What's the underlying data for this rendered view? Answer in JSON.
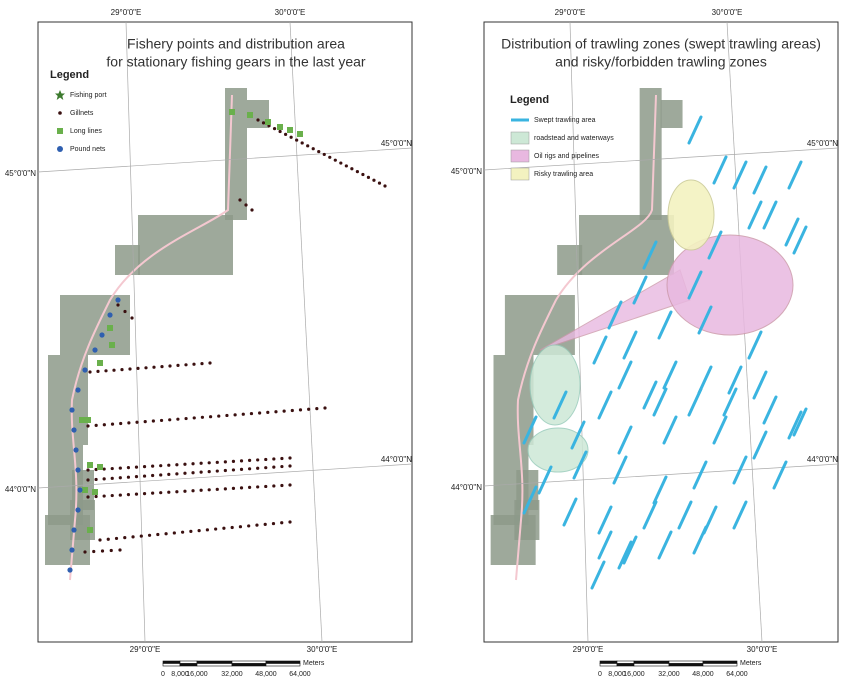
{
  "maps": [
    {
      "title": [
        "Fishery points and distribution area",
        "for stationary fishing gears in the last year"
      ],
      "legend": {
        "title": "Legend",
        "items": [
          "Fishing port",
          "Gillnets",
          "Long lines",
          "Pound nets"
        ]
      },
      "graticule": {
        "top": [
          "29°0'0\"E",
          "30°0'0\"E"
        ],
        "bottom": [
          "29°0'0\"E",
          "30°0'0\"E"
        ],
        "left": [
          "45°0'0\"N",
          "44°0'0\"N"
        ],
        "right": [
          "45°0'0\"N",
          "44°0'0\"N"
        ]
      },
      "scale": {
        "labels": [
          "0",
          "8,000",
          "16,000",
          "32,000",
          "48,000",
          "64,000"
        ],
        "unit": "Meters"
      }
    },
    {
      "title": [
        "Distribution of trawling zones (swept trawling areas)",
        "and risky/forbidden trawling zones"
      ],
      "legend": {
        "title": "Legend",
        "items": [
          "Swept trawling area",
          "roadstead and waterways",
          "Oil rigs and pipelines",
          "Risky trawling area"
        ]
      },
      "graticule": {
        "top": [
          "29°0'0\"E",
          "30°0'0\"E"
        ],
        "bottom": [
          "29°0'0\"E",
          "30°0'0\"E"
        ],
        "left": [
          "45°0'0\"N",
          "44°0'0\"N"
        ],
        "right": [
          "45°0'0\"N",
          "44°0'0\"N"
        ]
      },
      "scale": {
        "labels": [
          "0",
          "8,000",
          "16,000",
          "32,000",
          "48,000",
          "64,000"
        ],
        "unit": "Meters"
      }
    }
  ]
}
